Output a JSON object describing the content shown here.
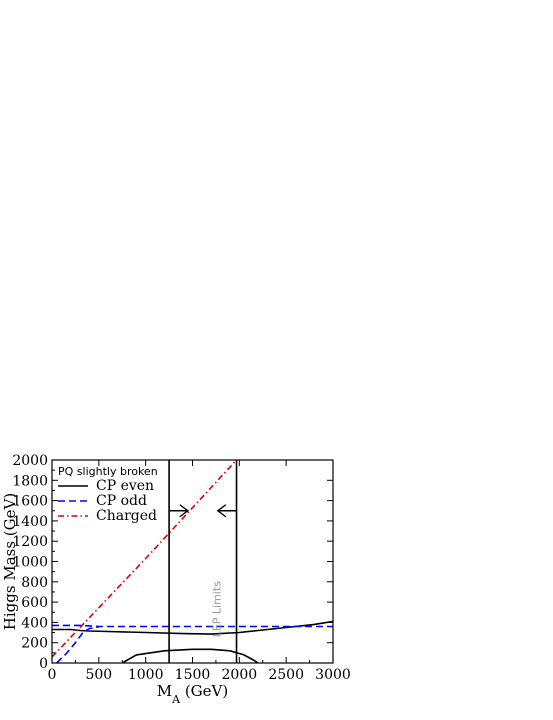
{
  "chart_data": {
    "type": "line",
    "title": "",
    "xlabel": "M",
    "xlabel_sub": "A",
    "xlabel_unit": "(GeV)",
    "ylabel": "Higgs Mass (GeV)",
    "xlim": [
      0,
      3000
    ],
    "ylim": [
      0,
      2000
    ],
    "xticks": [
      0,
      500,
      1000,
      1500,
      2000,
      2500,
      3000
    ],
    "yticks": [
      0,
      200,
      400,
      600,
      800,
      1000,
      1200,
      1400,
      1600,
      1800,
      2000
    ],
    "grid": false,
    "legend": {
      "placement": "top-left",
      "title": "PQ slightly broken",
      "entries": [
        {
          "label": "CP even",
          "color": "#000000",
          "style": "solid"
        },
        {
          "label": "CP odd",
          "color": "#0000ff",
          "style": "dashed"
        },
        {
          "label": "Charged",
          "color": "#dd0000",
          "style": "dash-dot"
        }
      ]
    },
    "series": [
      {
        "group": "CP even",
        "color": "#000000",
        "style": "solid",
        "x": [
          0,
          200,
          300,
          400,
          600,
          1000,
          1400,
          1700,
          2000,
          2200,
          2500,
          2800,
          3000
        ],
        "y": [
          330,
          330,
          320,
          315,
          310,
          300,
          290,
          285,
          300,
          320,
          350,
          380,
          410
        ]
      },
      {
        "group": "CP even",
        "color": "#000000",
        "style": "solid",
        "x": [
          750,
          900,
          1200,
          1500,
          1700,
          1900,
          2050,
          2150,
          2200
        ],
        "y": [
          0,
          80,
          120,
          135,
          135,
          120,
          80,
          30,
          0
        ]
      },
      {
        "group": "CP odd",
        "color": "#0000ff",
        "style": "dashed",
        "x": [
          0,
          300,
          500,
          1000,
          1500,
          2000,
          2500,
          3000
        ],
        "y": [
          370,
          370,
          360,
          360,
          360,
          360,
          360,
          360
        ]
      },
      {
        "group": "CP odd",
        "color": "#0000ff",
        "style": "dashed",
        "x": [
          50,
          150,
          250,
          330,
          400,
          500
        ],
        "y": [
          0,
          90,
          200,
          300,
          340,
          355
        ]
      },
      {
        "group": "Charged",
        "color": "#dd0000",
        "style": "dash-dot",
        "x": [
          0,
          1000,
          1970
        ],
        "y": [
          60,
          1030,
          2000
        ]
      }
    ],
    "vertical_lines": [
      1250,
      1970
    ],
    "annotations": [
      {
        "text": "LEP Limits",
        "x": 1800,
        "y": 530,
        "color": "#999999"
      },
      {
        "arrow": "right",
        "x0": 1250,
        "x1": 1450,
        "y": 1500
      },
      {
        "arrow": "left",
        "x0": 1970,
        "x1": 1770,
        "y": 1500
      }
    ]
  }
}
